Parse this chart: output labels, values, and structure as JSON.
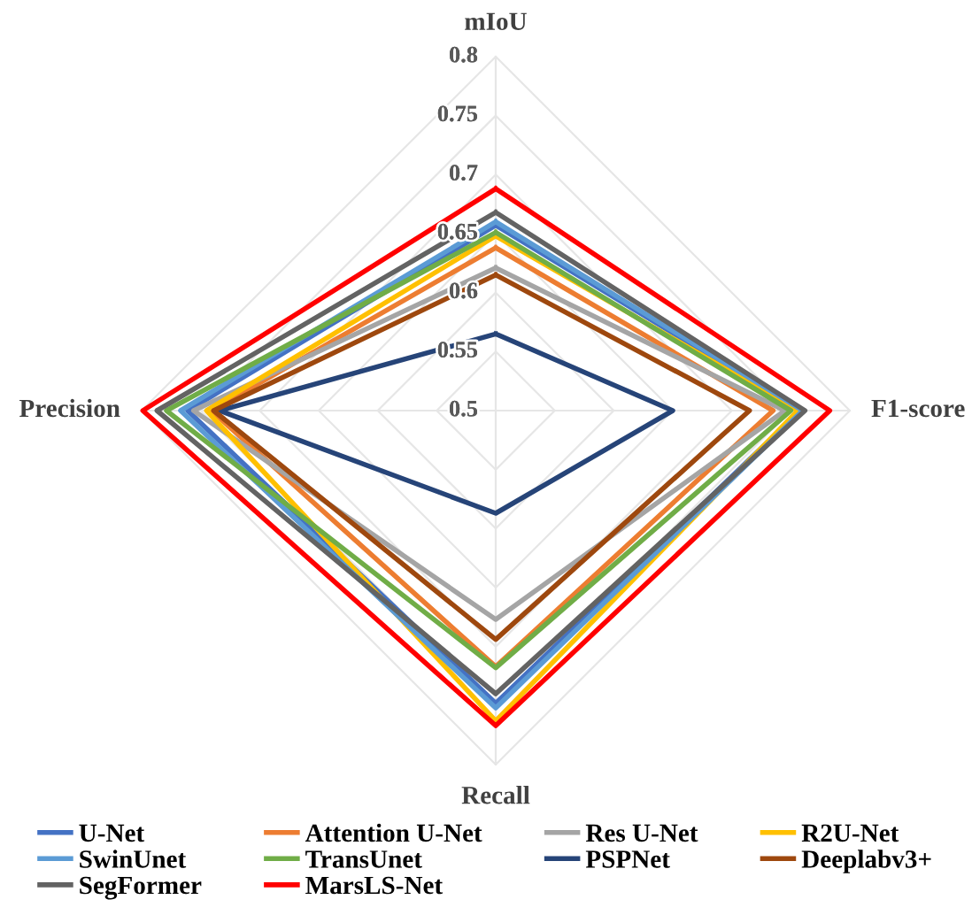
{
  "chart_data": {
    "type": "radar",
    "categories": [
      "mIoU",
      "F1-score",
      "Recall",
      "Precision"
    ],
    "ylim": [
      0.5,
      0.8
    ],
    "yticks": [
      0.5,
      0.55,
      0.6,
      0.65,
      0.7,
      0.75,
      0.8
    ],
    "grid": true,
    "legend": "bottom",
    "marker": "none",
    "line_style": "solid",
    "series": [
      {
        "name": "U-Net",
        "color": "#4472c4",
        "values": [
          0.657,
          0.758,
          0.748,
          0.761
        ]
      },
      {
        "name": "Attention U-Net",
        "color": "#ed7d31",
        "values": [
          0.638,
          0.735,
          0.717,
          0.741
        ]
      },
      {
        "name": "Res U-Net",
        "color": "#a5a5a5",
        "values": [
          0.621,
          0.745,
          0.677,
          0.756
        ]
      },
      {
        "name": "R2U-Net",
        "color": "#ffc000",
        "values": [
          0.648,
          0.756,
          0.763,
          0.745
        ]
      },
      {
        "name": "SwinUnet",
        "color": "#5b9bd5",
        "values": [
          0.66,
          0.76,
          0.752,
          0.767
        ]
      },
      {
        "name": "TransUnet",
        "color": "#70ad47",
        "values": [
          0.651,
          0.75,
          0.718,
          0.779
        ]
      },
      {
        "name": "PSPNet",
        "color": "#264478",
        "values": [
          0.565,
          0.65,
          0.587,
          0.734
        ]
      },
      {
        "name": "Deeplabv3+",
        "color": "#9e480e",
        "values": [
          0.615,
          0.715,
          0.694,
          0.739
        ]
      },
      {
        "name": "SegFormer",
        "color": "#636363",
        "values": [
          0.668,
          0.762,
          0.74,
          0.787
        ]
      },
      {
        "name": "MarsLS-Net",
        "color": "#ff0000",
        "values": [
          0.688,
          0.783,
          0.767,
          0.799
        ]
      }
    ]
  }
}
